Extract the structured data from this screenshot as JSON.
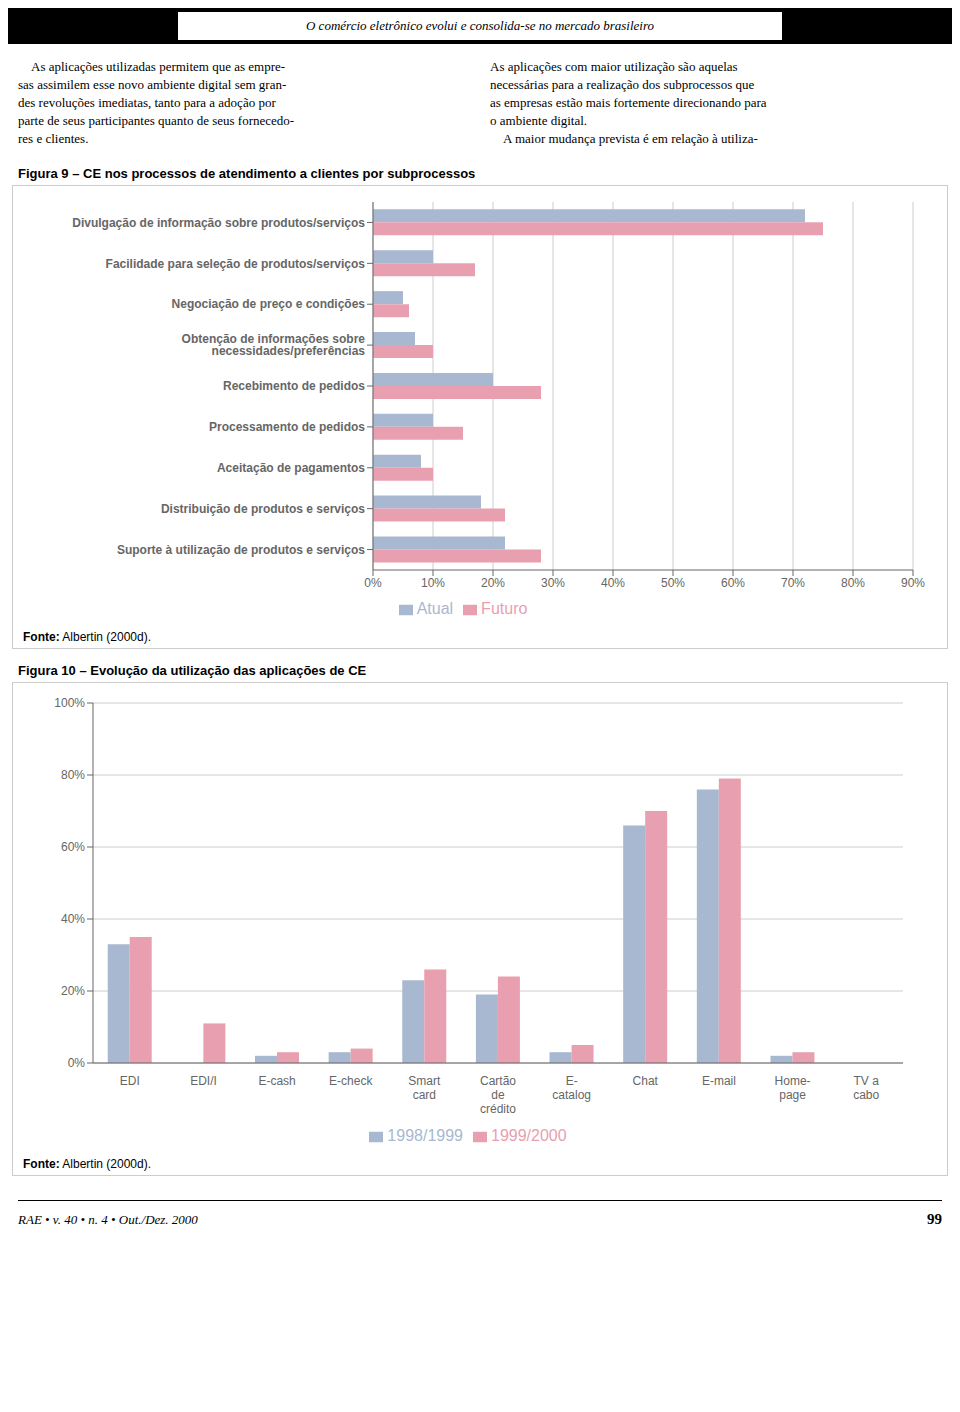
{
  "chart_data": [
    {
      "type": "bar",
      "orientation": "horizontal",
      "title": "Figura 9 – CE nos processos de atendimento a clientes por subprocessos",
      "categories": [
        "Suporte à utilização de produtos e serviços",
        "Distribuição de produtos e serviços",
        "Aceitação de pagamentos",
        "Processamento de pedidos",
        "Recebimento de pedidos",
        "Obtenção de informações sobre necessidades/preferências",
        "Negociação de preço e condições",
        "Facilidade para seleção de produtos/serviços",
        "Divulgação de informação sobre produtos/serviços"
      ],
      "series": [
        {
          "name": "Atual",
          "color": "#a8b8d0",
          "values": [
            22,
            18,
            8,
            10,
            20,
            7,
            5,
            10,
            72
          ]
        },
        {
          "name": "Futuro",
          "color": "#e8a0b0",
          "values": [
            28,
            22,
            10,
            15,
            28,
            10,
            6,
            17,
            75
          ]
        }
      ],
      "xlim": [
        0,
        90
      ],
      "xticks": [
        {
          "value": 0,
          "label": "0%"
        },
        {
          "value": 10,
          "label": "10%"
        },
        {
          "value": 20,
          "label": "20%"
        },
        {
          "value": 30,
          "label": "30%"
        },
        {
          "value": 40,
          "label": "40%"
        },
        {
          "value": 50,
          "label": "50%"
        },
        {
          "value": 60,
          "label": "60%"
        },
        {
          "value": 70,
          "label": "70%"
        },
        {
          "value": 80,
          "label": "80%"
        },
        {
          "value": 90,
          "label": "90%"
        }
      ],
      "grid": true,
      "legend": "bottom",
      "annotations": [
        "O comércio eletrônico evolui e consolida-se no mercado brasileiro",
        "    As aplicações utilizadas permitem que as empre-\nsas assimilem esse novo ambiente digital sem gran-\ndes revoluções imediatas, tanto para a adoção por\nparte de seus participantes quanto de seus fornecedo-\nres e clientes.",
        "As aplicações com maior utilização são aquelas\nnecessárias para a realização dos subprocessos que\nas empresas estão mais fortemente direcionando para\no ambiente digital.\n    A maior mudança prevista é em relação à utiliza-",
        "Fonte: Albertin (2000d)."
      ]
    },
    {
      "type": "bar",
      "title": "Figura 10 – Evolução da utilização das aplicações de CE",
      "categories": [
        "EDI",
        "EDI/I",
        "E-cash",
        "E-check",
        "Smart\ncard",
        "Cartão\nde\ncrédito",
        "E-\ncatalog",
        "Chat",
        "E-mail",
        "Home-\npage",
        "TV a\ncabo"
      ],
      "series": [
        {
          "name": "1998/1999",
          "color": "#a8b8d0",
          "values": [
            33,
            0,
            2,
            3,
            23,
            19,
            3,
            66,
            76,
            2,
            0
          ]
        },
        {
          "name": "1999/2000",
          "color": "#e8a0b0",
          "values": [
            35,
            11,
            3,
            4,
            26,
            24,
            5,
            70,
            79,
            3,
            0
          ]
        }
      ],
      "ylim": [
        0,
        100
      ],
      "yticks": [
        {
          "value": 0,
          "label": "0%"
        },
        {
          "value": 20,
          "label": "20%"
        },
        {
          "value": 40,
          "label": "40%"
        },
        {
          "value": 60,
          "label": "60%"
        },
        {
          "value": 80,
          "label": "80%"
        },
        {
          "value": 100,
          "label": "100%"
        }
      ],
      "grid": true,
      "legend": "bottom",
      "annotations": [
        "Fonte: Albertin (2000d).",
        "RAE • v. 40 • n. 4 • Out./Dez. 2000",
        "99"
      ]
    }
  ]
}
